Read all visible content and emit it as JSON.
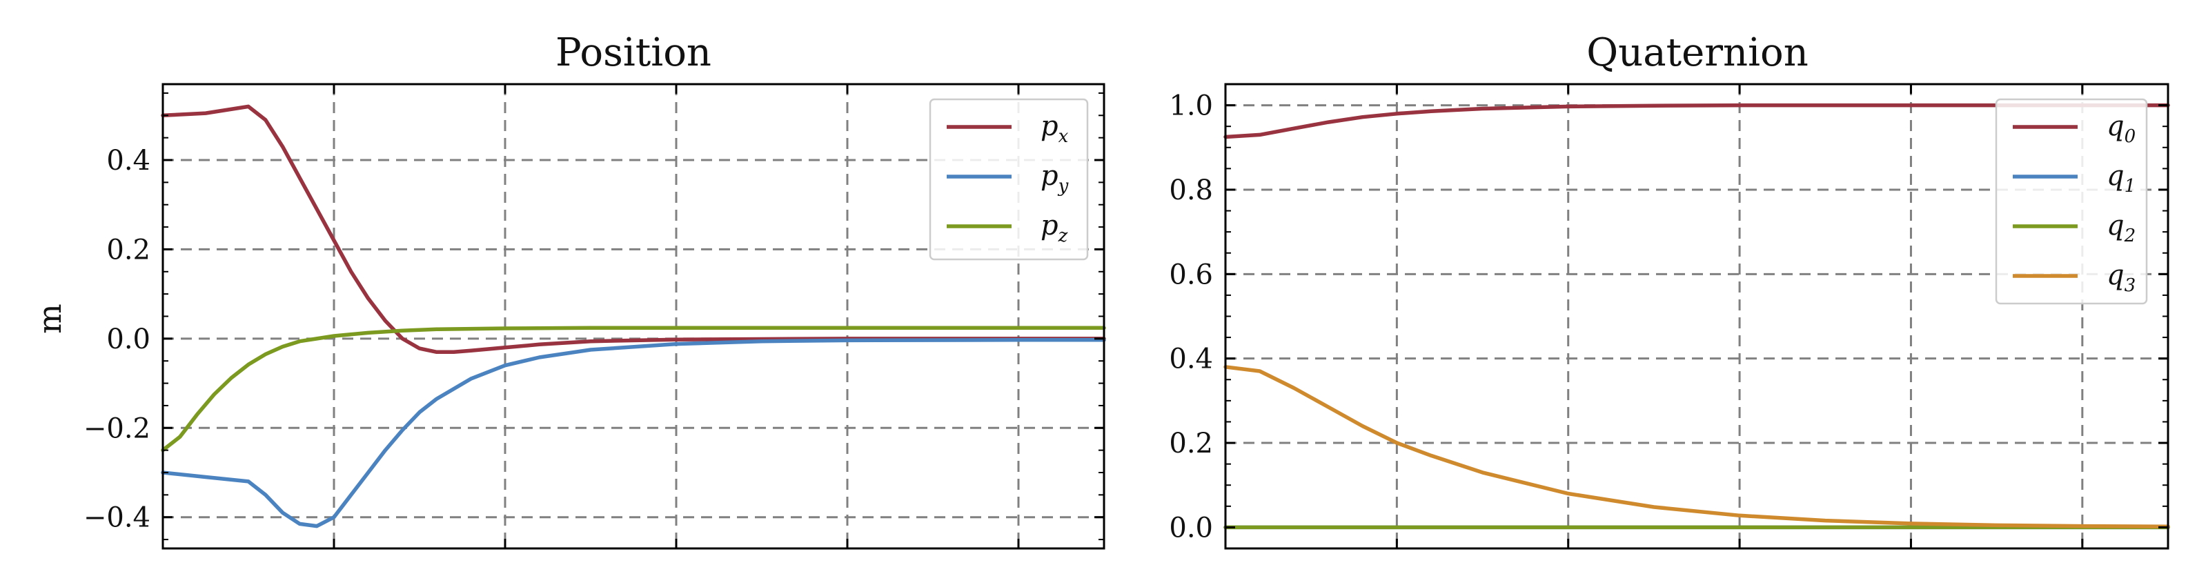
{
  "chart_data": [
    {
      "type": "line",
      "title": "Position",
      "ylabel": "m",
      "xlabel": "",
      "grid": true,
      "legend_position": "top-right",
      "xlim": [
        0,
        5.5
      ],
      "ylim": [
        -0.47,
        0.57
      ],
      "yticks": [
        -0.4,
        -0.2,
        0.0,
        0.2,
        0.4
      ],
      "ytick_labels": [
        "−0.4",
        "−0.2",
        "0.0",
        "0.2",
        "0.4"
      ],
      "xticks": [
        1,
        2,
        3,
        4,
        5
      ],
      "series": [
        {
          "name": "p",
          "sub": "x",
          "color": "#98333f",
          "x": [
            0,
            0.25,
            0.5,
            0.6,
            0.7,
            0.8,
            0.9,
            1.0,
            1.1,
            1.2,
            1.3,
            1.4,
            1.5,
            1.6,
            1.7,
            1.8,
            2.0,
            2.2,
            2.5,
            3.0,
            3.5,
            4.0,
            5.0,
            5.5
          ],
          "y": [
            0.5,
            0.505,
            0.52,
            0.49,
            0.43,
            0.36,
            0.29,
            0.22,
            0.15,
            0.09,
            0.04,
            0.0,
            -0.022,
            -0.03,
            -0.03,
            -0.027,
            -0.02,
            -0.013,
            -0.006,
            -0.002,
            -0.001,
            0.0,
            0.0,
            0.0
          ]
        },
        {
          "name": "p",
          "sub": "y",
          "color": "#4b83c1",
          "x": [
            0,
            0.25,
            0.5,
            0.6,
            0.7,
            0.8,
            0.9,
            1.0,
            1.1,
            1.2,
            1.3,
            1.4,
            1.5,
            1.6,
            1.8,
            2.0,
            2.2,
            2.5,
            3.0,
            3.5,
            4.0,
            5.0,
            5.5
          ],
          "y": [
            -0.3,
            -0.31,
            -0.32,
            -0.35,
            -0.39,
            -0.415,
            -0.42,
            -0.4,
            -0.35,
            -0.3,
            -0.25,
            -0.205,
            -0.165,
            -0.135,
            -0.09,
            -0.06,
            -0.042,
            -0.025,
            -0.012,
            -0.006,
            -0.004,
            -0.003,
            -0.003
          ]
        },
        {
          "name": "p",
          "sub": "z",
          "color": "#7b9a1f",
          "x": [
            0,
            0.1,
            0.2,
            0.3,
            0.4,
            0.5,
            0.6,
            0.7,
            0.8,
            0.9,
            1.0,
            1.2,
            1.4,
            1.6,
            2.0,
            2.5,
            3.0,
            4.0,
            5.5
          ],
          "y": [
            -0.25,
            -0.22,
            -0.17,
            -0.125,
            -0.088,
            -0.058,
            -0.035,
            -0.018,
            -0.006,
            0.0,
            0.006,
            0.013,
            0.018,
            0.021,
            0.023,
            0.024,
            0.024,
            0.024,
            0.024
          ]
        }
      ]
    },
    {
      "type": "line",
      "title": "Quaternion",
      "ylabel": "",
      "xlabel": "",
      "grid": true,
      "legend_position": "top-right",
      "xlim": [
        0,
        5.5
      ],
      "ylim": [
        -0.05,
        1.05
      ],
      "yticks": [
        0.0,
        0.2,
        0.4,
        0.6,
        0.8,
        1.0
      ],
      "ytick_labels": [
        "0.0",
        "0.2",
        "0.4",
        "0.6",
        "0.8",
        "1.0"
      ],
      "xticks": [
        1,
        2,
        3,
        4,
        5
      ],
      "series": [
        {
          "name": "q",
          "sub": "0",
          "color": "#98333f",
          "x": [
            0,
            0.2,
            0.4,
            0.6,
            0.8,
            1.0,
            1.2,
            1.5,
            2.0,
            2.5,
            3.0,
            4.0,
            5.0,
            5.5
          ],
          "y": [
            0.925,
            0.93,
            0.945,
            0.96,
            0.972,
            0.98,
            0.986,
            0.992,
            0.997,
            0.999,
            1.0,
            1.0,
            1.0,
            1.0
          ]
        },
        {
          "name": "q",
          "sub": "1",
          "color": "#4b83c1",
          "x": [
            0,
            5.5
          ],
          "y": [
            0.0,
            0.0
          ]
        },
        {
          "name": "q",
          "sub": "2",
          "color": "#7b9a1f",
          "x": [
            0,
            5.5
          ],
          "y": [
            0.0,
            0.0
          ]
        },
        {
          "name": "q",
          "sub": "3",
          "color": "#cf8a2e",
          "x": [
            0,
            0.2,
            0.4,
            0.6,
            0.8,
            1.0,
            1.2,
            1.5,
            2.0,
            2.5,
            3.0,
            3.5,
            4.0,
            4.5,
            5.0,
            5.5
          ],
          "y": [
            0.38,
            0.37,
            0.33,
            0.285,
            0.24,
            0.2,
            0.17,
            0.13,
            0.08,
            0.048,
            0.028,
            0.016,
            0.009,
            0.005,
            0.003,
            0.002
          ]
        }
      ]
    }
  ]
}
